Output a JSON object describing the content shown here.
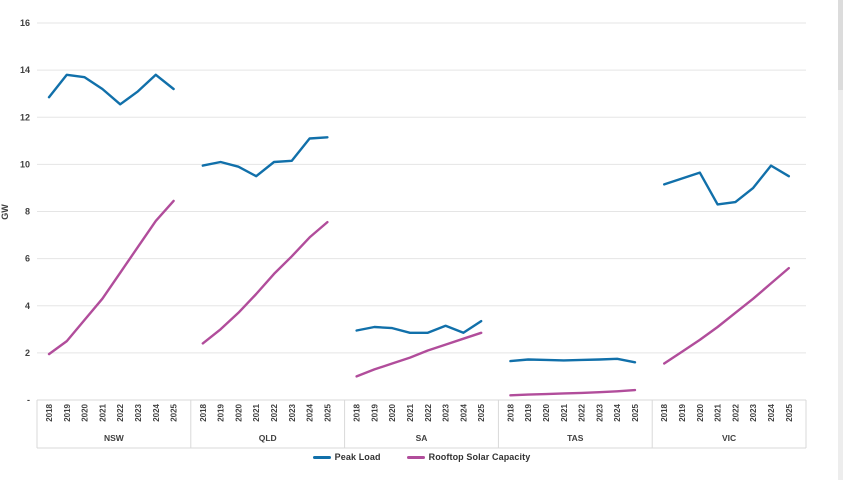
{
  "page": {
    "background": "#ffffff"
  },
  "colors": {
    "peak_load": "#1170AA",
    "rooftop_solar": "#B14D9B",
    "gridline": "#e5e5e5",
    "axis_border": "#d9d9d9",
    "tick_text": "#404040"
  },
  "chart_data": {
    "type": "line",
    "title": "",
    "xlabel": "",
    "ylabel": "GW",
    "ylim": [
      0,
      16
    ],
    "y_tick_step": 2,
    "zero_tick_label": "-",
    "grid": true,
    "legend_position": "bottom",
    "years": [
      "2018",
      "2019",
      "2020",
      "2021",
      "2022",
      "2023",
      "2024",
      "2025"
    ],
    "states": [
      "NSW",
      "QLD",
      "SA",
      "TAS",
      "VIC"
    ],
    "series": [
      {
        "name": "Peak Load",
        "color": "#1170AA",
        "values_by_state": {
          "NSW": [
            12.85,
            13.8,
            13.7,
            13.2,
            12.55,
            13.1,
            13.8,
            13.2
          ],
          "QLD": [
            9.95,
            10.1,
            9.9,
            9.5,
            10.1,
            10.15,
            11.1,
            11.15
          ],
          "SA": [
            2.95,
            3.1,
            3.05,
            2.85,
            2.85,
            3.15,
            2.85,
            3.35
          ],
          "TAS": [
            1.65,
            1.72,
            1.7,
            1.68,
            1.7,
            1.72,
            1.75,
            1.6
          ],
          "VIC": [
            9.15,
            9.4,
            9.65,
            8.3,
            8.4,
            9.0,
            9.95,
            9.5
          ]
        }
      },
      {
        "name": "Rooftop Solar Capacity",
        "color": "#B14D9B",
        "values_by_state": {
          "NSW": [
            1.95,
            2.5,
            3.4,
            4.3,
            5.4,
            6.5,
            7.6,
            8.45
          ],
          "QLD": [
            2.4,
            3.0,
            3.7,
            4.5,
            5.35,
            6.1,
            6.9,
            7.55
          ],
          "SA": [
            1.0,
            1.3,
            1.55,
            1.8,
            2.1,
            2.35,
            2.6,
            2.85
          ],
          "TAS": [
            0.2,
            0.23,
            0.25,
            0.28,
            0.3,
            0.33,
            0.37,
            0.42
          ],
          "VIC": [
            1.55,
            2.05,
            2.55,
            3.1,
            3.7,
            4.3,
            4.95,
            5.6
          ]
        }
      }
    ]
  },
  "legend": {
    "items": [
      {
        "label": "Peak Load",
        "color": "#1170AA"
      },
      {
        "label": "Rooftop Solar Capacity",
        "color": "#B14D9B"
      }
    ]
  }
}
